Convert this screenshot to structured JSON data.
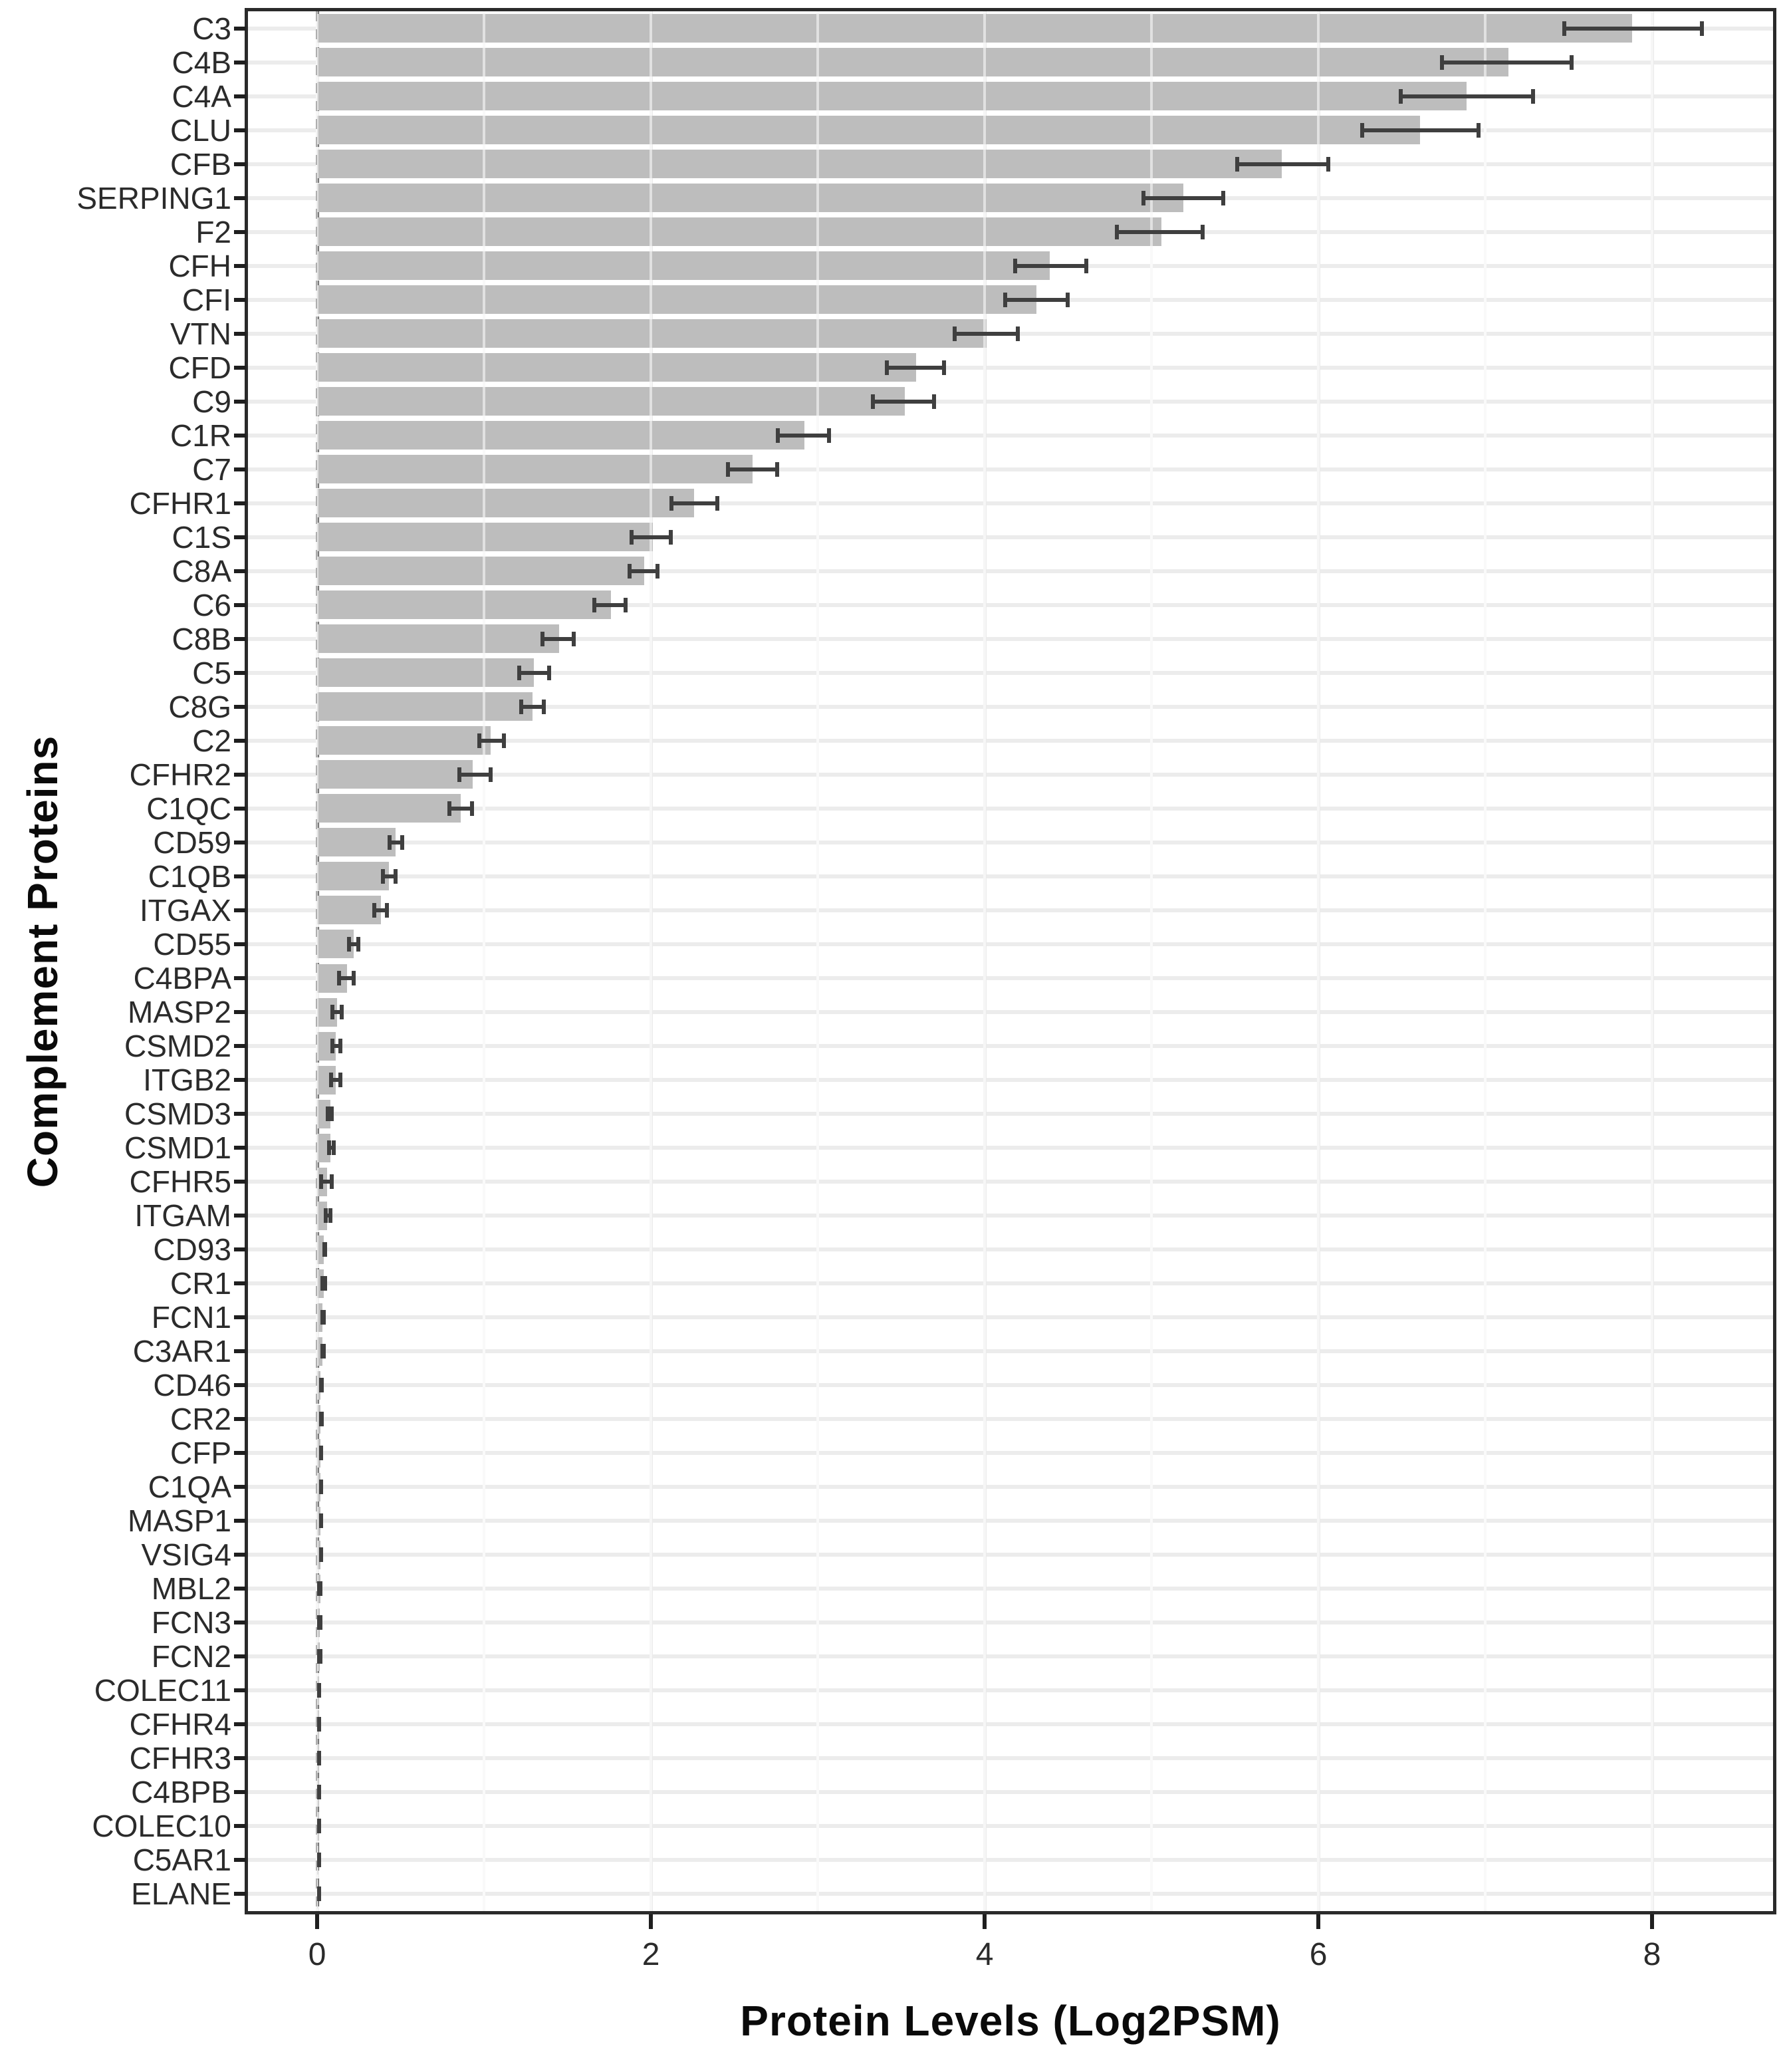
{
  "chart_data": {
    "type": "bar",
    "orientation": "horizontal",
    "title": "",
    "xlabel": "Protein Levels (Log2PSM)",
    "ylabel": "Complement Proteins",
    "xlim": [
      -0.415,
      8.725
    ],
    "xticks": [
      0,
      2,
      4,
      6,
      8
    ],
    "xticks_minor": [
      1,
      3,
      5,
      7
    ],
    "grid": {
      "horizontal_per_category": true,
      "vertical_major": true,
      "vertical_minor": true
    },
    "legend": "none",
    "reference_line": {
      "x": 0,
      "linetype": "dashed"
    },
    "error_bars": "horizontal, mean ± error",
    "colors": {
      "bar_fill": "#bdbdbd",
      "error_bar": "#3f3f3f",
      "panel_border": "#2a2a2a",
      "grid_major": "#eaeaea",
      "grid_minor": "#f2f2f2",
      "axis_text": "#2b2b2b",
      "axis_title": "#0a0a0a",
      "dashed_zero_line": "#4c4c4c"
    },
    "categories": [
      "C3",
      "C4B",
      "C4A",
      "CLU",
      "CFB",
      "SERPING1",
      "F2",
      "CFH",
      "CFI",
      "VTN",
      "CFD",
      "C9",
      "C1R",
      "C7",
      "CFHR1",
      "C1S",
      "C8A",
      "C6",
      "C8B",
      "C5",
      "C8G",
      "C2",
      "CFHR2",
      "C1QC",
      "CD59",
      "C1QB",
      "ITGAX",
      "CD55",
      "C4BPA",
      "MASP2",
      "CSMD2",
      "ITGB2",
      "CSMD3",
      "CSMD1",
      "CFHR5",
      "ITGAM",
      "CD93",
      "CR1",
      "FCN1",
      "C3AR1",
      "CD46",
      "CR2",
      "CFP",
      "C1QA",
      "MASP1",
      "VSIG4",
      "MBL2",
      "FCN3",
      "FCN2",
      "COLEC11",
      "CFHR4",
      "CFHR3",
      "C4BPB",
      "COLEC10",
      "C5AR1",
      "ELANE"
    ],
    "values": [
      7.88,
      7.14,
      6.89,
      6.61,
      5.78,
      5.19,
      5.06,
      4.39,
      4.31,
      4.01,
      3.59,
      3.52,
      2.92,
      2.61,
      2.26,
      2.01,
      1.96,
      1.76,
      1.45,
      1.3,
      1.29,
      1.04,
      0.93,
      0.86,
      0.47,
      0.43,
      0.38,
      0.22,
      0.18,
      0.12,
      0.11,
      0.11,
      0.08,
      0.08,
      0.06,
      0.06,
      0.04,
      0.04,
      0.03,
      0.03,
      0.02,
      0.02,
      0.02,
      0.02,
      0.02,
      0.02,
      0.02,
      0.015,
      0.015,
      0.01,
      0.01,
      0.01,
      0.01,
      0.01,
      0.008,
      0.003
    ],
    "error_low": [
      7.46,
      6.73,
      6.48,
      6.25,
      5.5,
      4.94,
      4.78,
      4.17,
      4.11,
      3.81,
      3.4,
      3.32,
      2.75,
      2.45,
      2.11,
      1.87,
      1.86,
      1.65,
      1.34,
      1.2,
      1.21,
      0.96,
      0.84,
      0.78,
      0.42,
      0.38,
      0.33,
      0.18,
      0.12,
      0.08,
      0.08,
      0.07,
      0.05,
      0.06,
      0.01,
      0.04,
      0.03,
      0.02,
      0.02,
      0.02,
      0.01,
      0.01,
      0.01,
      0.01,
      0.01,
      0.01,
      0.0,
      0.0,
      0.0,
      0.0,
      0.0,
      0.0,
      0.0,
      0.0,
      0.0,
      0.0
    ],
    "error_high": [
      8.31,
      7.53,
      7.3,
      6.97,
      6.07,
      5.44,
      5.32,
      4.62,
      4.51,
      4.21,
      3.77,
      3.71,
      3.08,
      2.77,
      2.41,
      2.13,
      2.05,
      1.86,
      1.55,
      1.4,
      1.37,
      1.13,
      1.05,
      0.94,
      0.52,
      0.48,
      0.43,
      0.26,
      0.23,
      0.16,
      0.15,
      0.15,
      0.1,
      0.11,
      0.1,
      0.09,
      0.06,
      0.06,
      0.05,
      0.05,
      0.04,
      0.04,
      0.03,
      0.03,
      0.03,
      0.03,
      0.03,
      0.03,
      0.03,
      0.025,
      0.025,
      0.02,
      0.02,
      0.02,
      0.015,
      0.01
    ]
  }
}
